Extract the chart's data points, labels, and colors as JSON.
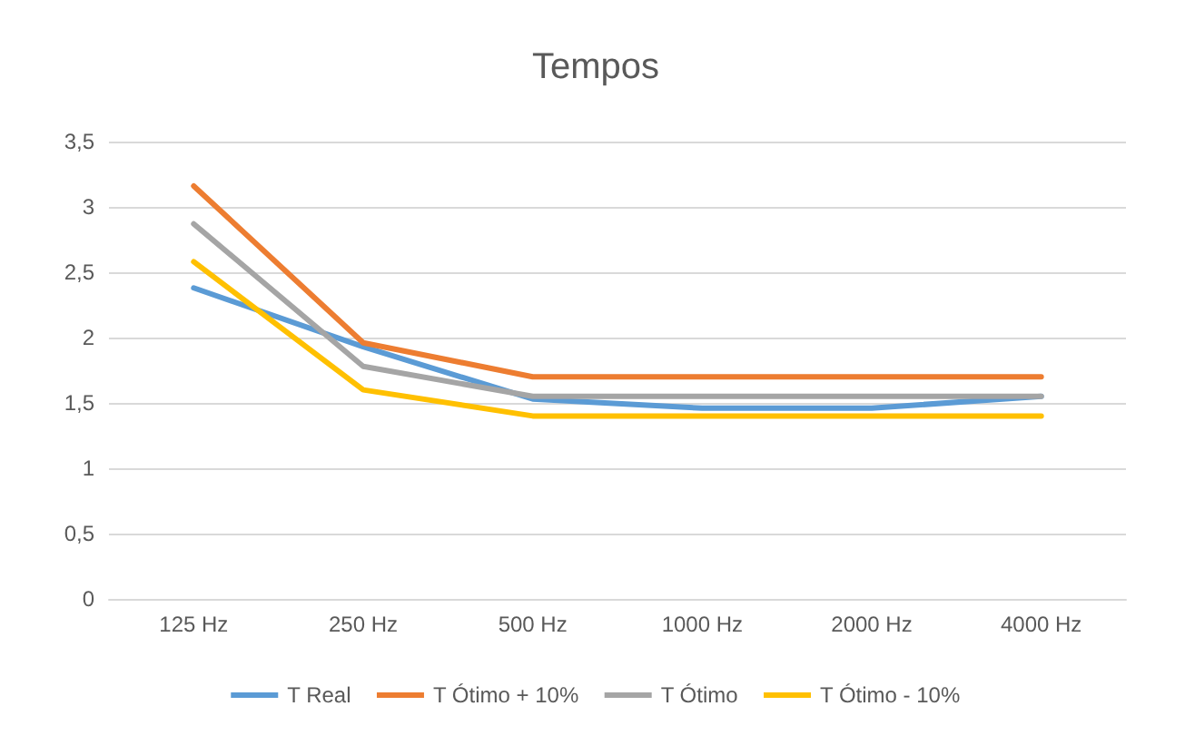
{
  "chart_data": {
    "type": "line",
    "title": "Tempos",
    "categories": [
      "125 Hz",
      "250 Hz",
      "500 Hz",
      "1000 Hz",
      "2000 Hz",
      "4000 Hz"
    ],
    "series": [
      {
        "name": "T Real",
        "color": "#5b9bd5",
        "values": [
          2.38,
          1.93,
          1.53,
          1.46,
          1.46,
          1.55
        ]
      },
      {
        "name": "T Ótimo + 10%",
        "color": "#ed7d31",
        "values": [
          3.16,
          1.96,
          1.7,
          1.7,
          1.7,
          1.7
        ]
      },
      {
        "name": "T Ótimo",
        "color": "#a5a5a5",
        "values": [
          2.87,
          1.78,
          1.55,
          1.55,
          1.55,
          1.55
        ]
      },
      {
        "name": "T Ótimo - 10%",
        "color": "#ffc000",
        "values": [
          2.58,
          1.6,
          1.4,
          1.4,
          1.4,
          1.4
        ]
      }
    ],
    "ylim": [
      0,
      3.5
    ],
    "yticks": [
      0,
      {
        "value": 0.5,
        "label": "0,5"
      },
      1,
      {
        "value": 1.5,
        "label": "1,5"
      },
      2,
      {
        "value": 2.5,
        "label": "2,5"
      },
      3,
      {
        "value": 3.5,
        "label": "3,5"
      }
    ],
    "grid": "y",
    "legend": "bottom",
    "marker": "none",
    "line_style": "solid"
  }
}
